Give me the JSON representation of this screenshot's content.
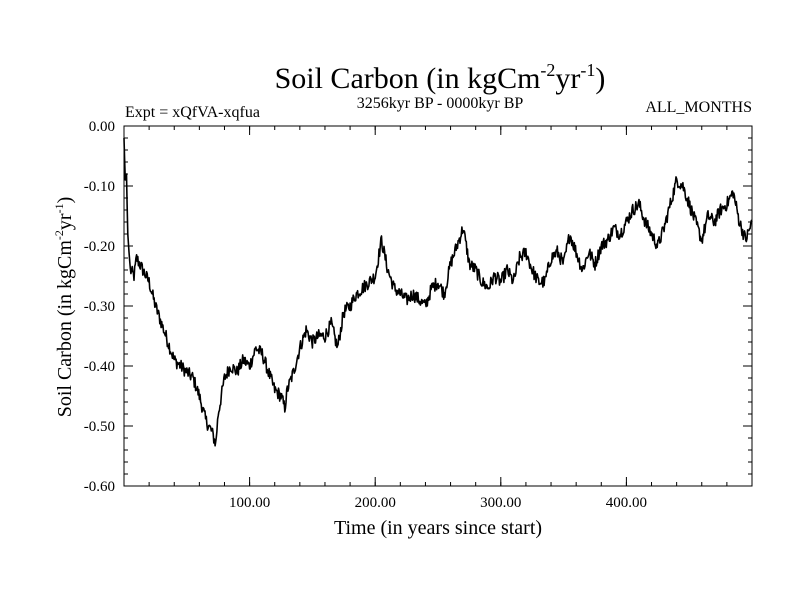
{
  "chart_data": {
    "type": "line",
    "title": "Soil Carbon (in kgCm",
    "title_sup1": "-2",
    "title_mid": "yr",
    "title_sup2": "-1",
    "title_end": ")",
    "subtitle_left": "Expt = xQfVA-xqfua",
    "subtitle_center": "3256kyr BP - 0000kyr BP",
    "subtitle_right": "ALL_MONTHS",
    "xlabel": "Time (in years since start)",
    "ylabel": "Soil Carbon (in kgCm",
    "ylabel_sup1": "-2",
    "ylabel_mid": "yr",
    "ylabel_sup2": "-1",
    "ylabel_end": ")",
    "xlim": [
      0,
      500
    ],
    "ylim": [
      -0.6,
      0.0
    ],
    "xticks": [
      100,
      200,
      300,
      400
    ],
    "xtick_labels": [
      "100.00",
      "200.00",
      "300.00",
      "400.00"
    ],
    "yticks": [
      0.0,
      -0.1,
      -0.2,
      -0.3,
      -0.4,
      -0.5,
      -0.6
    ],
    "ytick_labels": [
      "0.00",
      "-0.10",
      "-0.20",
      "-0.30",
      "-0.40",
      "-0.50",
      "-0.60"
    ],
    "series": [
      {
        "name": "Soil Carbon",
        "x": [
          0,
          1,
          2,
          3,
          5,
          8,
          10,
          15,
          20,
          25,
          30,
          35,
          40,
          45,
          50,
          55,
          60,
          65,
          70,
          73,
          75,
          80,
          85,
          90,
          95,
          100,
          105,
          110,
          115,
          120,
          125,
          128,
          130,
          135,
          140,
          145,
          150,
          155,
          160,
          165,
          170,
          175,
          180,
          185,
          190,
          195,
          200,
          205,
          210,
          215,
          220,
          225,
          230,
          235,
          240,
          245,
          250,
          255,
          260,
          265,
          270,
          275,
          280,
          285,
          290,
          295,
          300,
          305,
          310,
          315,
          320,
          325,
          330,
          335,
          340,
          345,
          350,
          355,
          360,
          365,
          370,
          375,
          380,
          385,
          390,
          395,
          400,
          405,
          410,
          415,
          420,
          425,
          430,
          435,
          440,
          445,
          450,
          455,
          460,
          465,
          470,
          475,
          480,
          485,
          490,
          495,
          500
        ],
        "y": [
          -0.02,
          -0.09,
          -0.08,
          -0.18,
          -0.24,
          -0.25,
          -0.22,
          -0.24,
          -0.26,
          -0.3,
          -0.33,
          -0.36,
          -0.39,
          -0.4,
          -0.41,
          -0.42,
          -0.45,
          -0.49,
          -0.51,
          -0.53,
          -0.48,
          -0.42,
          -0.4,
          -0.41,
          -0.39,
          -0.4,
          -0.37,
          -0.38,
          -0.41,
          -0.44,
          -0.45,
          -0.47,
          -0.44,
          -0.41,
          -0.37,
          -0.34,
          -0.36,
          -0.35,
          -0.35,
          -0.33,
          -0.37,
          -0.31,
          -0.3,
          -0.28,
          -0.27,
          -0.26,
          -0.25,
          -0.19,
          -0.24,
          -0.27,
          -0.28,
          -0.29,
          -0.28,
          -0.29,
          -0.3,
          -0.27,
          -0.26,
          -0.28,
          -0.23,
          -0.2,
          -0.17,
          -0.23,
          -0.24,
          -0.26,
          -0.27,
          -0.25,
          -0.26,
          -0.24,
          -0.26,
          -0.22,
          -0.21,
          -0.24,
          -0.26,
          -0.26,
          -0.22,
          -0.21,
          -0.23,
          -0.18,
          -0.21,
          -0.24,
          -0.21,
          -0.23,
          -0.2,
          -0.19,
          -0.17,
          -0.18,
          -0.16,
          -0.14,
          -0.13,
          -0.16,
          -0.18,
          -0.2,
          -0.17,
          -0.13,
          -0.09,
          -0.1,
          -0.13,
          -0.16,
          -0.19,
          -0.15,
          -0.16,
          -0.14,
          -0.13,
          -0.11,
          -0.16,
          -0.19,
          -0.16
        ]
      }
    ]
  }
}
